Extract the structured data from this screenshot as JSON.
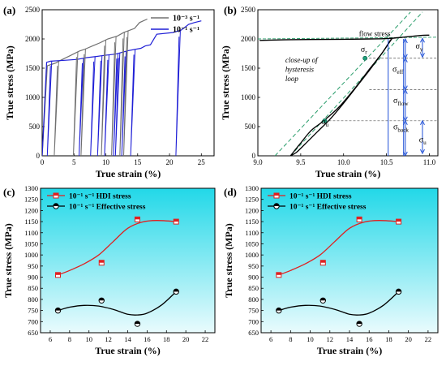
{
  "panels": {
    "a": {
      "label": "(a)"
    },
    "b": {
      "label": "(b)"
    },
    "c": {
      "label": "(c)"
    },
    "d": {
      "label": "(d)"
    }
  },
  "chart_data": [
    {
      "panel": "a",
      "type": "line",
      "title": "",
      "xlabel": "True strain (%)",
      "ylabel": "True stress (MPa)",
      "xlim": [
        0,
        27
      ],
      "ylim": [
        0,
        2500
      ],
      "xticks": [
        0,
        5,
        10,
        15,
        20,
        25
      ],
      "yticks": [
        0,
        500,
        1000,
        1500,
        2000,
        2500
      ],
      "grid": false,
      "legend_position": "top-right",
      "series": [
        {
          "name": "10⁻³ s⁻¹",
          "color": "#707070",
          "points": [
            [
              0,
              0
            ],
            [
              0.8,
              1540
            ],
            [
              1.6,
              1570
            ],
            [
              2.2,
              1590
            ],
            [
              2.6,
              1620
            ],
            [
              4.3,
              1710
            ],
            [
              5.8,
              1790
            ],
            [
              6.6,
              1820
            ],
            [
              8.1,
              1890
            ],
            [
              9.0,
              1930
            ],
            [
              10.3,
              2000
            ],
            [
              11.8,
              2050
            ],
            [
              12.8,
              2110
            ],
            [
              14.5,
              2180
            ],
            [
              15.3,
              2280
            ],
            [
              16.5,
              2340
            ]
          ]
        },
        {
          "name": "10⁻¹ s⁻¹",
          "color": "#1f1fd6",
          "points": [
            [
              0,
              0
            ],
            [
              0.7,
              1600
            ],
            [
              1.3,
              1620
            ],
            [
              3.5,
              1635
            ],
            [
              5.5,
              1650
            ],
            [
              7.0,
              1680
            ],
            [
              8.5,
              1700
            ],
            [
              9.8,
              1720
            ],
            [
              11.5,
              1740
            ],
            [
              12.5,
              1770
            ],
            [
              13.5,
              1800
            ],
            [
              15.5,
              1840
            ],
            [
              16.2,
              1880
            ],
            [
              17.0,
              1900
            ],
            [
              18.0,
              2080
            ],
            [
              20.5,
              2110
            ],
            [
              21.8,
              2150
            ],
            [
              22.3,
              2190
            ],
            [
              23.0,
              2250
            ],
            [
              23.9,
              2280
            ],
            [
              25.0,
              2310
            ]
          ]
        }
      ],
      "unloading_loops": [
        {
          "series": "10⁻³ s⁻¹",
          "x": [
            2.6,
            5.6,
            6.8,
            10.0,
            11.6,
            12.9,
            13.5
          ]
        },
        {
          "series": "10⁻¹ s⁻¹",
          "x": [
            1.5,
            6.5,
            8.3,
            9.4,
            10.5,
            11.9,
            12.2,
            13.2,
            14.6,
            21.7
          ]
        }
      ]
    },
    {
      "panel": "b",
      "type": "line",
      "title": "",
      "xlabel": "True strain (%)",
      "ylabel": "True stress (MPa)",
      "xlim": [
        9.0,
        11.1
      ],
      "ylim": [
        0,
        2500
      ],
      "xticks": [
        9.0,
        9.5,
        10.0,
        10.5,
        11.0
      ],
      "yticks": [
        0,
        500,
        1000,
        1500,
        2000,
        2500
      ],
      "grid": false,
      "series": [
        {
          "name": "",
          "color": "#000000",
          "points": [
            [
              9.02,
              1975
            ],
            [
              9.3,
              1985
            ],
            [
              9.6,
              1990
            ],
            [
              10.0,
              1995
            ],
            [
              10.3,
              2000
            ],
            [
              10.5,
              2005
            ],
            [
              10.7,
              2030
            ],
            [
              10.9,
              2060
            ],
            [
              11.0,
              2065
            ]
          ]
        }
      ],
      "hysteresis_loop": {
        "unloading": [
          [
            10.57,
            2020
          ],
          [
            10.45,
            1760
          ],
          [
            10.3,
            1460
          ],
          [
            10.15,
            1180
          ],
          [
            10.0,
            900
          ],
          [
            9.85,
            640
          ],
          [
            9.7,
            420
          ],
          [
            9.55,
            200
          ],
          [
            9.45,
            60
          ],
          [
            9.38,
            0
          ]
        ],
        "reloading": [
          [
            9.38,
            0
          ],
          [
            9.5,
            220
          ],
          [
            9.62,
            430
          ],
          [
            9.76,
            590
          ],
          [
            9.95,
            840
          ],
          [
            10.15,
            1190
          ],
          [
            10.3,
            1480
          ],
          [
            10.45,
            1760
          ],
          [
            10.55,
            1990
          ]
        ]
      },
      "tangent_lines": [
        {
          "points": [
            [
              9.2,
              0
            ],
            [
              10.78,
              2460
            ]
          ],
          "color": "#2a9d6b"
        },
        {
          "points": [
            [
              9.38,
              0
            ],
            [
              10.92,
              2460
            ]
          ],
          "color": "#2a9d6b"
        }
      ],
      "guide_levels": {
        "sigma_r": 1670,
        "sigma_flow": 1130,
        "sigma_u": 600
      },
      "points": [
        {
          "name": "σr",
          "x": 10.25,
          "y": 1670
        },
        {
          "name": "σu",
          "x": 9.78,
          "y": 600
        }
      ],
      "annotations": [
        {
          "text": "flow stress",
          "x": 10.18,
          "y": 2050
        },
        {
          "text": "close-up of",
          "x": 9.32,
          "y": 1600
        },
        {
          "text": "hysteresis",
          "x": 9.32,
          "y": 1440
        },
        {
          "text": "loop",
          "x": 9.32,
          "y": 1280
        },
        {
          "text": "σr",
          "x": 10.2,
          "y": 1780
        },
        {
          "text": "σu",
          "x": 9.74,
          "y": 540
        },
        {
          "text": "σy",
          "x": 10.84,
          "y": 1830
        },
        {
          "text": "σeff",
          "x": 10.57,
          "y": 1440
        },
        {
          "text": "σflow",
          "x": 10.58,
          "y": 900
        },
        {
          "text": "σback",
          "x": 10.58,
          "y": 450
        },
        {
          "text": "σu",
          "x": 10.88,
          "y": 230
        }
      ]
    },
    {
      "panel": "c",
      "type": "scatter",
      "title": "",
      "xlabel": "True strain (%)",
      "ylabel": "True stress (MPa)",
      "xlim": [
        5,
        23
      ],
      "ylim": [
        650,
        1300
      ],
      "xticks": [
        6,
        8,
        10,
        12,
        14,
        16,
        18,
        20,
        22
      ],
      "yticks": [
        650,
        700,
        750,
        800,
        850,
        900,
        950,
        1000,
        1050,
        1100,
        1150,
        1200,
        1250,
        1300
      ],
      "grid": false,
      "legend_position": "top-left",
      "series": [
        {
          "name": "10⁻¹ s⁻¹ HDI stress",
          "color": "#e02020",
          "marker": "half-square",
          "x": [
            6.8,
            11.3,
            15.0,
            19.0
          ],
          "values": [
            910,
            965,
            1160,
            1150
          ]
        },
        {
          "name": "10⁻¹ s⁻¹ Effective stress",
          "color": "#000000",
          "marker": "half-circle",
          "x": [
            6.8,
            11.3,
            15.0,
            19.0
          ],
          "values": [
            750,
            795,
            690,
            835
          ]
        }
      ],
      "fits": [
        {
          "series": "10⁻¹ s⁻¹ HDI stress",
          "color": "#e02020",
          "points": [
            [
              6.8,
              910
            ],
            [
              8,
              930
            ],
            [
              9.5,
              960
            ],
            [
              11,
              1000
            ],
            [
              12.5,
              1060
            ],
            [
              14,
              1120
            ],
            [
              15.5,
              1148
            ],
            [
              17,
              1155
            ],
            [
              19,
              1150
            ]
          ]
        },
        {
          "series": "10⁻¹ s⁻¹ Effective stress",
          "color": "#000000",
          "points": [
            [
              6.8,
              750
            ],
            [
              8,
              765
            ],
            [
              9.5,
              773
            ],
            [
              11,
              770
            ],
            [
              12.5,
              755
            ],
            [
              14,
              733
            ],
            [
              15,
              730
            ],
            [
              16,
              738
            ],
            [
              17.5,
              775
            ],
            [
              19,
              835
            ]
          ]
        }
      ]
    },
    {
      "panel": "d",
      "type": "scatter",
      "title": "",
      "xlabel": "True strain (%)",
      "ylabel": "True stress (MPa)",
      "xlim": [
        5,
        23
      ],
      "ylim": [
        650,
        1300
      ],
      "xticks": [
        6,
        8,
        10,
        12,
        14,
        16,
        18,
        20,
        22
      ],
      "yticks": [
        650,
        700,
        750,
        800,
        850,
        900,
        950,
        1000,
        1050,
        1100,
        1150,
        1200,
        1250,
        1300
      ],
      "grid": false,
      "legend_position": "top-left",
      "series": [
        {
          "name": "10⁻¹ s⁻¹ HDI stress",
          "color": "#e02020",
          "marker": "half-square",
          "x": [
            6.8,
            11.3,
            15.0,
            19.0
          ],
          "values": [
            910,
            965,
            1160,
            1150
          ]
        },
        {
          "name": "10⁻¹ s⁻¹ Effective stress",
          "color": "#000000",
          "marker": "half-circle",
          "x": [
            6.8,
            11.3,
            15.0,
            19.0
          ],
          "values": [
            750,
            795,
            690,
            835
          ]
        }
      ],
      "fits": [
        {
          "series": "10⁻¹ s⁻¹ HDI stress",
          "color": "#e02020",
          "points": [
            [
              6.8,
              910
            ],
            [
              8,
              930
            ],
            [
              9.5,
              960
            ],
            [
              11,
              1000
            ],
            [
              12.5,
              1060
            ],
            [
              14,
              1120
            ],
            [
              15.5,
              1148
            ],
            [
              17,
              1155
            ],
            [
              19,
              1150
            ]
          ]
        },
        {
          "series": "10⁻¹ s⁻¹ Effective stress",
          "color": "#000000",
          "points": [
            [
              6.8,
              750
            ],
            [
              8,
              765
            ],
            [
              9.5,
              773
            ],
            [
              11,
              770
            ],
            [
              12.5,
              755
            ],
            [
              14,
              733
            ],
            [
              15,
              730
            ],
            [
              16,
              738
            ],
            [
              17.5,
              775
            ],
            [
              19,
              835
            ]
          ]
        }
      ]
    }
  ]
}
